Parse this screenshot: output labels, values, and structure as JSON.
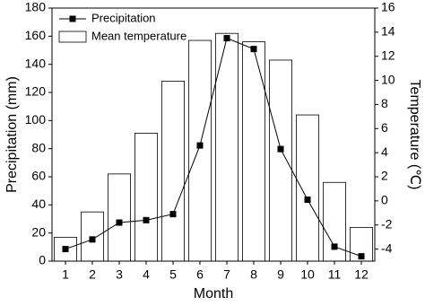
{
  "chart_data": {
    "type": "bar-line",
    "categories": [
      "1",
      "2",
      "3",
      "4",
      "5",
      "6",
      "7",
      "8",
      "9",
      "10",
      "11",
      "12"
    ],
    "x_label": "Month",
    "y_label": "Precipitation (mm)",
    "y2_label": "Temperature (℃)",
    "series": [
      {
        "name": "Precipitation",
        "type": "line",
        "axis": "y2",
        "color": "#000000",
        "values": [
          -4.0,
          -3.2,
          -1.8,
          -1.6,
          -1.1,
          4.6,
          13.5,
          12.6,
          4.3,
          0.1,
          -3.8,
          -4.6
        ]
      },
      {
        "name": "Mean temperature",
        "type": "bar",
        "color": "#ffffff",
        "values": [
          17,
          35,
          62,
          91,
          128,
          157,
          162,
          156,
          143,
          104,
          56,
          24
        ]
      }
    ],
    "ylim": [
      0,
      180
    ],
    "yticks": [
      0,
      20,
      40,
      60,
      80,
      100,
      120,
      140,
      160,
      180
    ],
    "y2lim": [
      -5,
      16
    ],
    "y2ticks": [
      -4,
      -2,
      0,
      2,
      4,
      6,
      8,
      10,
      12,
      14,
      16
    ],
    "legend": "top-left"
  }
}
